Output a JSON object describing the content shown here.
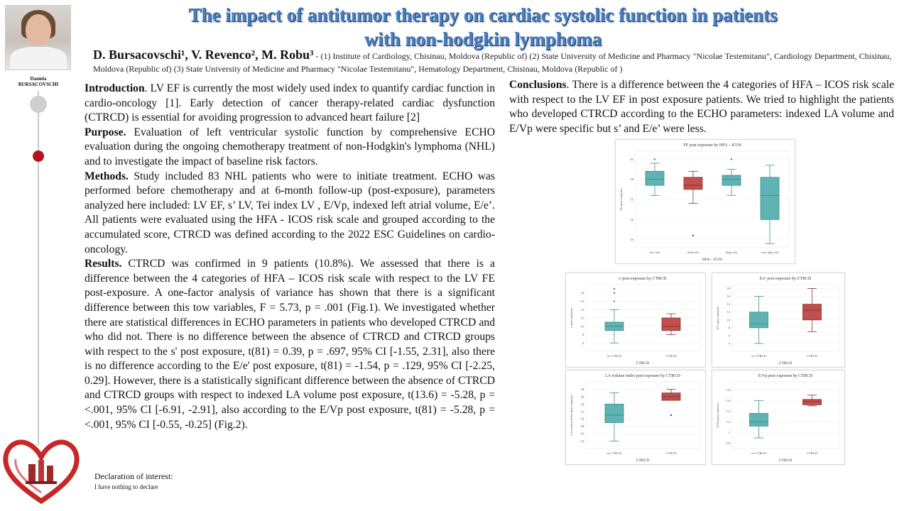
{
  "header": {
    "title_line1": "The impact of antitumor therapy on cardiac systolic function in patients",
    "title_line2": "with non-hodgkin lymphoma",
    "authors": "D. Bursacovschi¹, V. Revenco², M. Robu³",
    "affiliations": " - (1) Institute of Cardiology, Chisinau, Moldova (Republic of) (2) State University of Medicine and Pharmacy \"Nicolae Testemitanu\", Cardiology Department, Chisinau, Moldova (Republic of) (3) State University of Medicine and Pharmacy \"Nicolae Testemitanu\", Hematology Department, Chisinau, Moldova (Republic of )"
  },
  "presenter": {
    "name_line1": "Daniela",
    "name_line2": "BURSACOVSCHI"
  },
  "sections": {
    "introduction": {
      "heading": "Introduction",
      "text": ". LV EF is currently the most widely used index to quantify cardiac function in cardio-oncology [1]. Early detection of cancer therapy-related cardiac dysfunction (CTRCD) is essential for avoiding progression to advanced heart failure [2]"
    },
    "purpose": {
      "heading": "Purpose.",
      "text": " Evaluation of left ventricular systolic function by comprehensive ECHO evaluation during the ongoing chemotherapy treatment of non-Hodgkin's lymphoma (NHL) and to investigate the impact of baseline risk factors."
    },
    "methods": {
      "heading": "Methods.",
      "text": " Study included 83 NHL patients who were to initiate treatment. ECHO was performed before chemotherapy and at 6-month follow-up (post-exposure), parameters analyzed here included: LV EF, s’ LV, Tei index LV , E/Vp, indexed left atrial volume, E/e’. All patients were evaluated using the HFA - ICOS risk scale and grouped according to the accumulated score, CTRCD was defined according to the 2022 ESC Guidelines on cardio-oncology."
    },
    "results": {
      "heading": "Results.",
      "text": " CTRCD was confirmed in 9 patients (10.8%). We assessed that there is a difference between the 4 categories of  HFA – ICOS risk scale with respect to the LV FE post-exposure. A one-factor analysis of variance has shown that there is a significant difference between this tow variables, F = 5.73, p = .001 (Fig.1). We investigated whether there are statistical differences in ECHO parameters in patients who developed CTRCD and who did not. There is no difference between the absence of CTRCD and CTRCD groups with respect to the s' post exposure, t(81) = 0.39, p = .697, 95% CI [-1.55, 2.31], also there is no difference according to the E/e' post exposure, t(81) = -1.54, p = .129, 95% CI [-2.25, 0.29]. However, there is a statistically significant difference between the absence of CTRCD and CTRCD groups with respect to indexed LA volume post exposure, t(13.6) = -5.28, p = <.001, 95% CI [-6.91, -2.91], also according to the E/Vp post exposure, t(81) = -5.28, p = <.001, 95% CI [-0.55, -0.25] (Fig.2)."
    },
    "conclusions": {
      "heading": "Conclusions",
      "text": ". There is a difference between the 4 categories of HFA – ICOS risk scale with respect to the LV EF in post exposure patients. We tried to highlight the patients who developed CTRCD according to the ECHO parameters: indexed LA volume and E/Vp were specific but s’ and E/e’ were less."
    }
  },
  "declaration": {
    "heading": "Declaration of interest:",
    "text": "I have nothing to declare"
  },
  "colors": {
    "title": "#4a7fc0",
    "teal": "#5fb3b3",
    "red": "#c0504d",
    "timeline_dot": "#b5121b"
  },
  "chart_data": [
    {
      "type": "box",
      "title": "FE post exposure by HFA – ICOS",
      "xlabel": "HFA – ICOS",
      "ylabel": "FE post exposure",
      "ylim": [
        43,
        67
      ],
      "yticks": [
        45,
        50,
        55,
        60,
        65
      ],
      "categories": [
        "low risk",
        "mild risk",
        "high risk",
        "very high risk"
      ],
      "boxes": [
        {
          "min": 56,
          "q1": 58.5,
          "median": 60,
          "q3": 62,
          "max": 64,
          "outliers": [
            65
          ],
          "color": "teal"
        },
        {
          "min": 54,
          "q1": 57.5,
          "median": 58.5,
          "q3": 60.5,
          "max": 62,
          "outliers": [
            46
          ],
          "color": "red"
        },
        {
          "min": 56,
          "q1": 58.5,
          "median": 60,
          "q3": 61,
          "max": 62.5,
          "outliers": [
            65
          ],
          "color": "teal"
        },
        {
          "min": 44,
          "q1": 50,
          "median": 56,
          "q3": 60.5,
          "max": 63.5,
          "outliers": [],
          "color": "teal"
        }
      ]
    },
    {
      "type": "box",
      "title": "s' post exposure by CTRCD",
      "xlabel": "CTRCD",
      "ylabel": "s' post exposure",
      "ylim": [
        4,
        20
      ],
      "yticks": [
        6,
        8,
        10,
        12,
        14,
        16,
        18
      ],
      "categories": [
        "no CTRCD",
        "CTRCD"
      ],
      "boxes": [
        {
          "min": 6,
          "q1": 9,
          "median": 10,
          "q3": 11,
          "max": 14,
          "outliers": [
            16,
            18,
            19
          ],
          "color": "teal"
        },
        {
          "min": 8,
          "q1": 9,
          "median": 10,
          "q3": 12,
          "max": 13,
          "outliers": [],
          "color": "red"
        }
      ]
    },
    {
      "type": "box",
      "title": "E/e' post exposure by CTRCD",
      "xlabel": "CTRCD",
      "ylabel": "E/e' post exposure",
      "ylim": [
        2,
        19
      ],
      "yticks": [
        4,
        6,
        8,
        10,
        12,
        14,
        16,
        18
      ],
      "categories": [
        "no CTRCD",
        "CTRCD"
      ],
      "boxes": [
        {
          "min": 4,
          "q1": 8,
          "median": 9,
          "q3": 12,
          "max": 16,
          "outliers": [],
          "color": "teal"
        },
        {
          "min": 7,
          "q1": 10,
          "median": 12.5,
          "q3": 14,
          "max": 18,
          "outliers": [],
          "color": "red"
        }
      ]
    },
    {
      "type": "box",
      "title": "LA volume index post exposure by CTRCD",
      "xlabel": "CTRCD",
      "ylabel": "LA volume index post exposure",
      "ylim": [
        22,
        40
      ],
      "yticks": [
        24,
        26,
        28,
        30,
        32,
        34,
        36,
        38
      ],
      "categories": [
        "no CTRCD",
        "CTRCD"
      ],
      "boxes": [
        {
          "min": 24,
          "q1": 29,
          "median": 31,
          "q3": 34,
          "max": 37,
          "outliers": [],
          "color": "teal"
        },
        {
          "min": 35,
          "q1": 35,
          "median": 36,
          "q3": 37,
          "max": 38,
          "outliers": [
            31
          ],
          "color": "red"
        }
      ]
    },
    {
      "type": "box",
      "title": "E/Vp post exposure by CTRCD",
      "xlabel": "CTRCD",
      "ylabel": "E/Vp post exposure",
      "ylim": [
        0.7,
        1.95
      ],
      "yticks": [
        0.8,
        1.0,
        1.2,
        1.4,
        1.6,
        1.8
      ],
      "categories": [
        "no CTRCD",
        "CTRCD"
      ],
      "boxes": [
        {
          "min": 0.9,
          "q1": 1.12,
          "median": 1.2,
          "q3": 1.36,
          "max": 1.6,
          "outliers": [],
          "color": "teal"
        },
        {
          "min": 1.5,
          "q1": 1.52,
          "median": 1.58,
          "q3": 1.62,
          "max": 1.7,
          "outliers": [],
          "color": "red"
        }
      ]
    }
  ]
}
